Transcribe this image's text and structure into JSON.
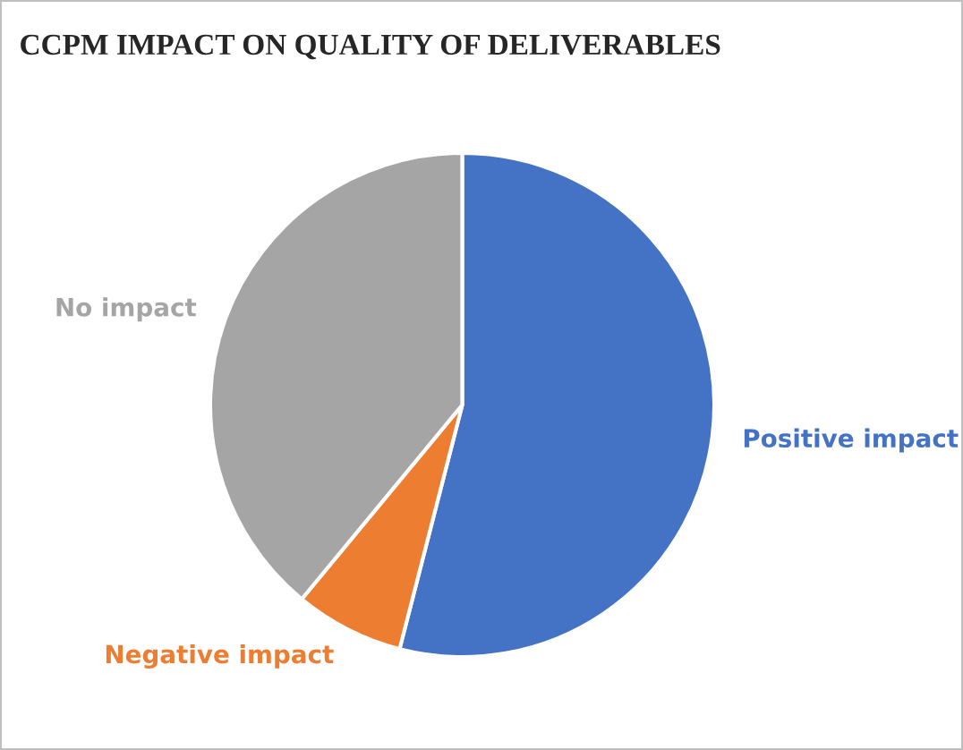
{
  "chart_data": {
    "type": "pie",
    "title": "CCPM IMPACT ON QUALITY OF DELIVERABLES",
    "categories": [
      "Positive impact",
      "Negative impact",
      "No impact"
    ],
    "values": [
      54,
      7,
      39
    ],
    "colors": [
      "#4472c4",
      "#ed7d31",
      "#a5a5a5"
    ],
    "legend": false
  }
}
